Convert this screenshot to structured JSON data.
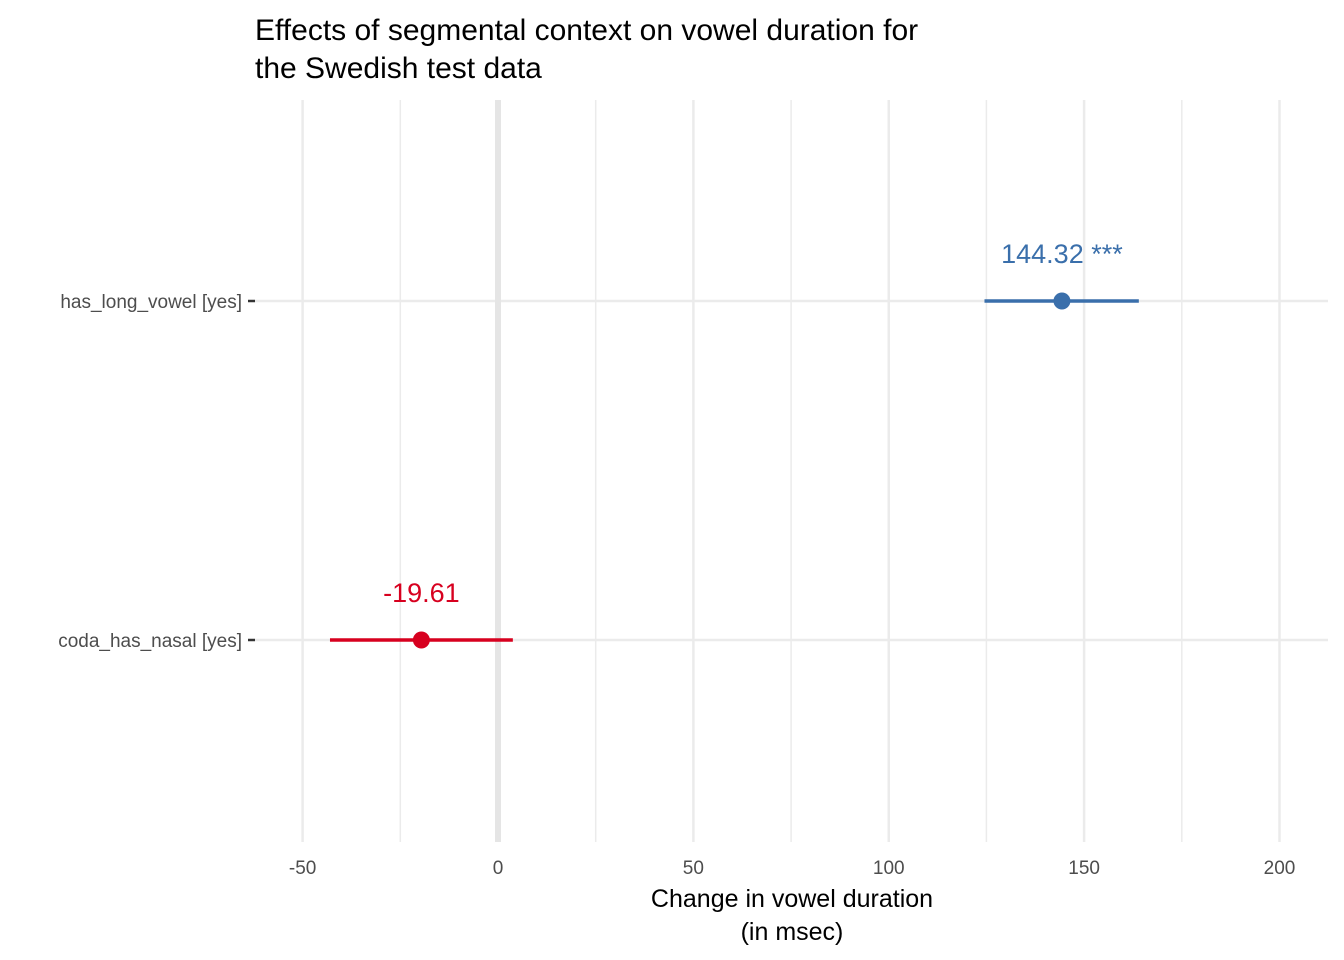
{
  "chart_data": {
    "type": "forest",
    "title": [
      "Effects of segmental context on vowel duration for",
      "the Swedish test data"
    ],
    "xlabel": [
      "Change in vowel duration",
      "(in msec)"
    ],
    "ylabel": "",
    "xlim": [
      -50,
      210
    ],
    "x_ticks": [
      -50,
      0,
      50,
      100,
      150,
      200
    ],
    "x_tick_labels": [
      "-50",
      "0",
      "50",
      "100",
      "150",
      "200"
    ],
    "zero_line": 0,
    "grid": true,
    "legend": "none",
    "terms": [
      {
        "label": "has_long_vowel [yes]",
        "estimate": 144.32,
        "ci_low": 124.5,
        "ci_high": 164,
        "value_label": "144.32 ***",
        "color": "#3a6fab"
      },
      {
        "label": "coda_has_nasal [yes]",
        "estimate": -19.61,
        "ci_low": -43,
        "ci_high": 3.8,
        "value_label": "-19.61",
        "color": "#d7001f"
      }
    ]
  }
}
